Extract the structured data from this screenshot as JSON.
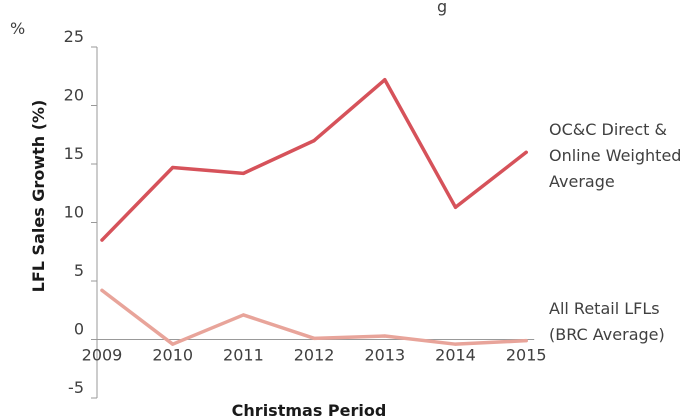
{
  "chart_data": {
    "type": "line",
    "title": "",
    "unit_label": "%",
    "top_text": "g",
    "xlabel": "Christmas Period",
    "ylabel": "LFL Sales Growth (%)",
    "ylim": [
      -5,
      25
    ],
    "yticks": [
      25,
      20,
      15,
      10,
      5,
      0,
      -5
    ],
    "x": [
      "2009",
      "2010",
      "2011",
      "2012",
      "2013",
      "2014",
      "2015"
    ],
    "series": [
      {
        "name_lines": [
          "OC&C Direct &",
          "Online Weighted",
          "Average"
        ],
        "color": "#d6525a",
        "values": [
          8.5,
          14.7,
          14.2,
          17.0,
          22.2,
          11.3,
          16.0
        ]
      },
      {
        "name_lines": [
          "All Retail LFLs",
          "(BRC Average)"
        ],
        "color": "#e8a49a",
        "values": [
          4.2,
          -0.4,
          2.1,
          0.1,
          0.3,
          -0.4,
          -0.1
        ]
      }
    ],
    "grid": false
  }
}
